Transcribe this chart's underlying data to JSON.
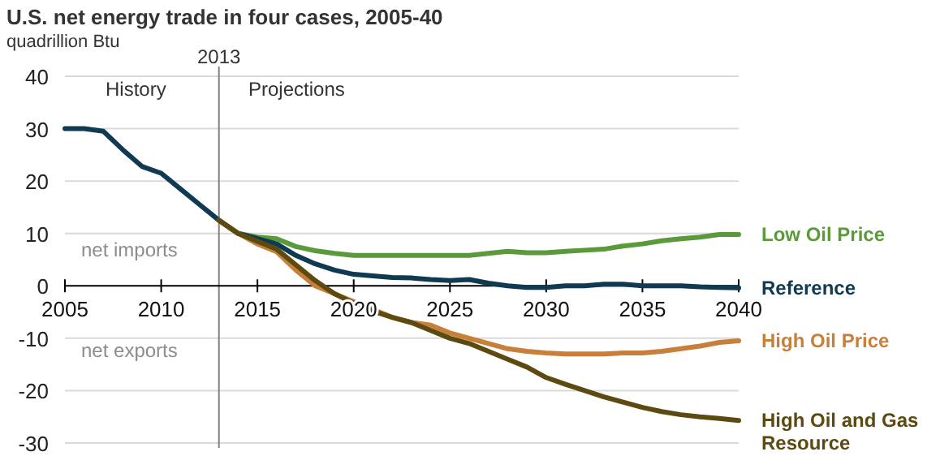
{
  "chart_data": {
    "type": "line",
    "title": "U.S. net energy trade in four cases,  2005-40",
    "subtitle": "quadrillion Btu",
    "x": [
      2005,
      2006,
      2007,
      2008,
      2009,
      2010,
      2011,
      2012,
      2013,
      2014,
      2015,
      2016,
      2017,
      2018,
      2019,
      2020,
      2021,
      2022,
      2023,
      2024,
      2025,
      2026,
      2027,
      2028,
      2029,
      2030,
      2031,
      2032,
      2033,
      2034,
      2035,
      2036,
      2037,
      2038,
      2039,
      2040
    ],
    "xlim": [
      2005,
      2040
    ],
    "xticks": [
      2005,
      2010,
      2015,
      2020,
      2025,
      2030,
      2035,
      2040
    ],
    "ylim": [
      -30,
      40
    ],
    "yticks": [
      -30,
      -20,
      -10,
      0,
      10,
      20,
      30,
      40
    ],
    "grid": "y",
    "legend": false,
    "series": [
      {
        "name": "Low Oil Price",
        "color": "#5a9a3a",
        "values": [
          null,
          null,
          null,
          null,
          null,
          null,
          null,
          null,
          12.5,
          10,
          9.3,
          9,
          7.5,
          6.7,
          6.2,
          5.8,
          5.8,
          5.8,
          5.8,
          5.8,
          5.8,
          5.8,
          6.2,
          6.6,
          6.3,
          6.3,
          6.6,
          6.8,
          7,
          7.6,
          8,
          8.6,
          9,
          9.3,
          9.8,
          9.8
        ]
      },
      {
        "name": "Reference",
        "color": "#0f3a52",
        "values": [
          30,
          30,
          29.5,
          26,
          22.8,
          21.5,
          18.5,
          15.5,
          12.5,
          10,
          9,
          8,
          5.8,
          4.2,
          3,
          2.2,
          1.9,
          1.6,
          1.5,
          1.2,
          1,
          1.2,
          0.5,
          0,
          -0.3,
          -0.3,
          0,
          0,
          0.3,
          0.3,
          0,
          0,
          0,
          -0.2,
          -0.3,
          -0.4
        ]
      },
      {
        "name": "High Oil Price",
        "color": "#c87f3a",
        "values": [
          null,
          null,
          null,
          null,
          null,
          null,
          null,
          null,
          12.5,
          10,
          8,
          6.5,
          3,
          0,
          -1.5,
          -3,
          -4.5,
          -6,
          -7,
          -7.5,
          -9,
          -10,
          -11,
          -12,
          -12.5,
          -12.8,
          -13,
          -13,
          -13,
          -12.8,
          -12.8,
          -12.5,
          -12,
          -11.5,
          -10.8,
          -10.5
        ]
      },
      {
        "name": "High Oil and Gas Resource",
        "color": "#5c4a10",
        "values": [
          null,
          null,
          null,
          null,
          null,
          null,
          null,
          null,
          12.5,
          10,
          8.5,
          7,
          4,
          1,
          -1.5,
          -3.3,
          -4.8,
          -6,
          -7,
          -8.5,
          -10,
          -11,
          -12.5,
          -14,
          -15.5,
          -17.5,
          -18.8,
          -20,
          -21.2,
          -22.2,
          -23.2,
          -24,
          -24.6,
          -25,
          -25.3,
          -25.7
        ]
      }
    ],
    "ref_lines": [
      {
        "axis": "x",
        "value": 2013,
        "label": "2013",
        "color": "#808080"
      }
    ],
    "annotations": [
      "History",
      "Projections",
      "net imports",
      "net exports"
    ]
  }
}
